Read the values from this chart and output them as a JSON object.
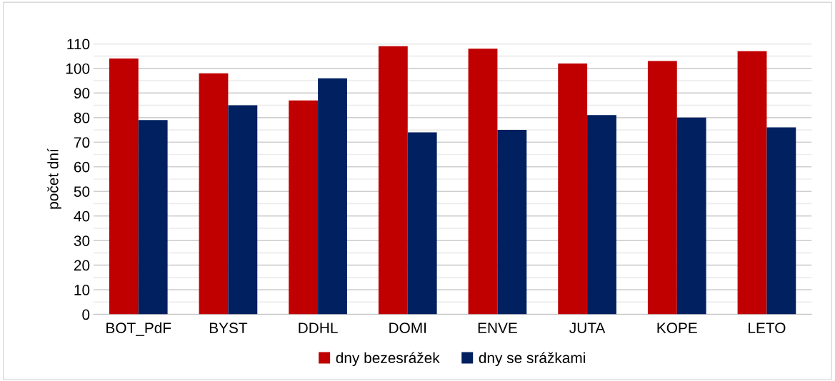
{
  "chart_data": {
    "type": "bar",
    "ylabel": "počet dní",
    "categories": [
      "BOT_PdF",
      "BYST",
      "DDHL",
      "DOMI",
      "ENVE",
      "JUTA",
      "KOPE",
      "LETO"
    ],
    "series": [
      {
        "name": "dny bezesrážek",
        "color": "#c00000",
        "values": [
          104,
          98,
          87,
          109,
          108,
          102,
          103,
          107
        ]
      },
      {
        "name": "dny se srážkami",
        "color": "#002060",
        "values": [
          79,
          85,
          96,
          74,
          75,
          81,
          80,
          76
        ]
      }
    ],
    "ylim": [
      0,
      110
    ],
    "yticks": [
      0,
      {
        "value": 5,
        "label": null
      },
      10,
      {
        "value": 15,
        "label": null
      },
      20,
      {
        "value": 25,
        "label": null
      },
      30,
      {
        "value": 35,
        "label": null
      },
      40,
      {
        "value": 45,
        "label": null
      },
      50,
      {
        "value": 55,
        "label": null
      },
      60,
      {
        "value": 65,
        "label": null
      },
      70,
      {
        "value": 75,
        "label": null
      },
      80,
      {
        "value": 85,
        "label": null
      },
      90,
      {
        "value": 95,
        "label": null
      },
      100,
      {
        "value": 105,
        "label": null
      },
      110
    ],
    "grid": "y",
    "legend": "bottom"
  }
}
